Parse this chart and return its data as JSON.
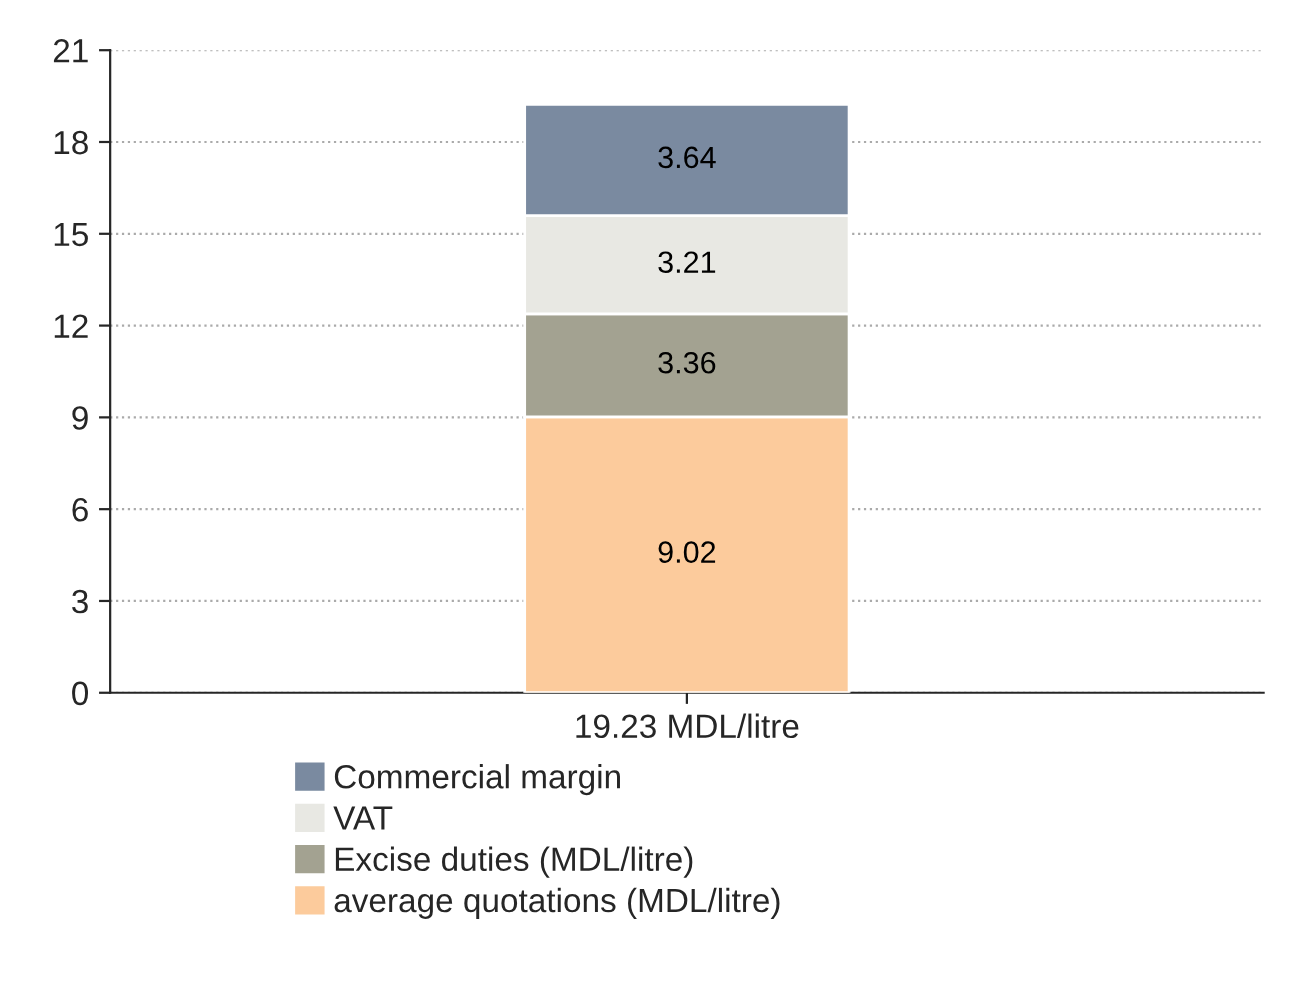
{
  "chart_data": {
    "type": "bar",
    "stacked": true,
    "categories": [
      "19.23 MDL/litre"
    ],
    "series": [
      {
        "name": "average quotations (MDL/litre)",
        "color": "#fccb9c",
        "values": [
          9.02
        ]
      },
      {
        "name": "Excise duties (MDL/litre)",
        "color": "#a3a291",
        "values": [
          3.36
        ]
      },
      {
        "name": "VAT",
        "color": "#e8e8e3",
        "values": [
          3.21
        ]
      },
      {
        "name": "Commercial margin",
        "color": "#7a8aa0",
        "values": [
          3.64
        ]
      }
    ],
    "ylim": [
      0,
      21
    ],
    "yticks": [
      0,
      3,
      6,
      9,
      12,
      15,
      18,
      21
    ],
    "grid": "y",
    "data_labels": true,
    "legend": "bottom"
  }
}
